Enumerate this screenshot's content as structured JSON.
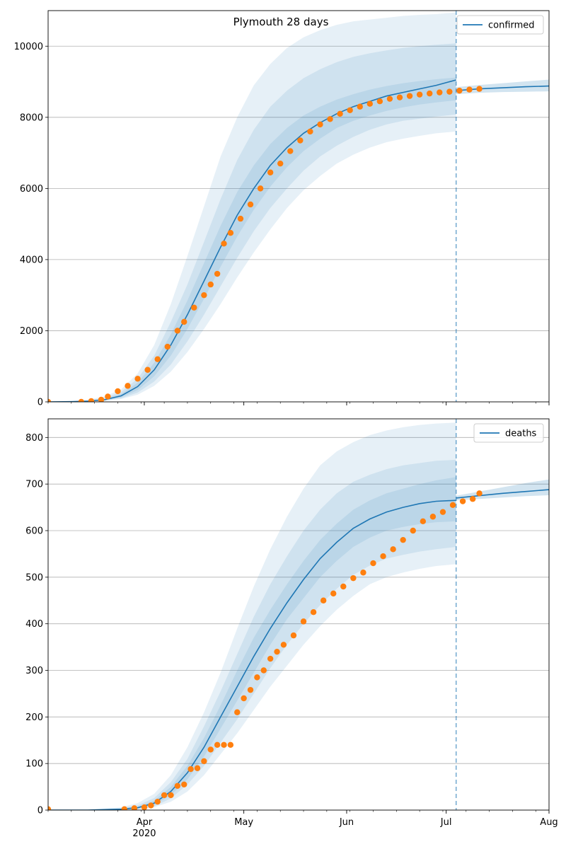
{
  "figure": {
    "title": "Plymouth 28 days",
    "x_ticks": [
      {
        "date": "2020-04-01",
        "label": "Apr",
        "sublabel": "2020"
      },
      {
        "date": "2020-05-01",
        "label": "May",
        "sublabel": ""
      },
      {
        "date": "2020-06-01",
        "label": "Jun",
        "sublabel": ""
      },
      {
        "date": "2020-07-01",
        "label": "Jul",
        "sublabel": ""
      },
      {
        "date": "2020-08-01",
        "label": "Aug",
        "sublabel": ""
      }
    ],
    "xlim": [
      "2020-03-03",
      "2020-08-01"
    ],
    "forecast_start": "2020-07-04",
    "colors": {
      "model": "#1f77b4",
      "observed": "#ff7f0e",
      "band": "#1f77b4",
      "grid": "#b0b0b0"
    }
  },
  "chart_data": [
    {
      "type": "line",
      "legend": "confirmed",
      "legend_position": "top-right",
      "ylim": [
        0,
        11000
      ],
      "y_ticks": [
        0,
        2000,
        4000,
        6000,
        8000,
        10000
      ],
      "grid": "horizontal",
      "model_fit": {
        "x": [
          "2020-03-03",
          "2020-03-10",
          "2020-03-15",
          "2020-03-20",
          "2020-03-25",
          "2020-03-30",
          "2020-04-04",
          "2020-04-09",
          "2020-04-14",
          "2020-04-19",
          "2020-04-24",
          "2020-04-29",
          "2020-05-04",
          "2020-05-09",
          "2020-05-14",
          "2020-05-19",
          "2020-05-24",
          "2020-05-29",
          "2020-06-03",
          "2020-06-08",
          "2020-06-13",
          "2020-06-18",
          "2020-06-23",
          "2020-06-28",
          "2020-07-04"
        ],
        "y": [
          0,
          5,
          20,
          60,
          170,
          430,
          900,
          1600,
          2450,
          3400,
          4350,
          5250,
          6000,
          6650,
          7150,
          7550,
          7850,
          8100,
          8300,
          8450,
          8600,
          8700,
          8800,
          8900,
          9050
        ],
        "band_90": {
          "lower": [
            0,
            0,
            5,
            25,
            80,
            200,
            450,
            850,
            1400,
            2050,
            2750,
            3500,
            4200,
            4850,
            5450,
            5950,
            6350,
            6700,
            6950,
            7150,
            7300,
            7400,
            7480,
            7550,
            7600
          ],
          "upper": [
            0,
            20,
            60,
            150,
            350,
            800,
            1600,
            2750,
            4100,
            5500,
            6900,
            8000,
            8900,
            9500,
            9950,
            10250,
            10450,
            10600,
            10700,
            10750,
            10800,
            10850,
            10880,
            10900,
            10950
          ]
        },
        "band_80": {
          "lower": [
            0,
            0,
            8,
            35,
            100,
            260,
            570,
            1050,
            1700,
            2450,
            3250,
            4050,
            4800,
            5450,
            6000,
            6500,
            6900,
            7200,
            7450,
            7650,
            7800,
            7900,
            7960,
            8020,
            8080
          ],
          "upper": [
            0,
            12,
            45,
            110,
            280,
            650,
            1300,
            2250,
            3300,
            4500,
            5700,
            6800,
            7650,
            8300,
            8750,
            9100,
            9350,
            9550,
            9700,
            9800,
            9880,
            9950,
            10000,
            10040,
            10080
          ]
        },
        "band_50": {
          "lower": [
            0,
            2,
            12,
            45,
            130,
            330,
            720,
            1300,
            2050,
            2900,
            3800,
            4650,
            5400,
            6050,
            6600,
            7050,
            7400,
            7700,
            7900,
            8050,
            8180,
            8280,
            8360,
            8420,
            8480
          ],
          "upper": [
            0,
            8,
            30,
            80,
            220,
            540,
            1100,
            1900,
            2850,
            3900,
            4950,
            5900,
            6650,
            7250,
            7700,
            8050,
            8300,
            8500,
            8650,
            8780,
            8880,
            8960,
            9020,
            9070,
            9120
          ]
        }
      },
      "forecast": {
        "x": [
          "2020-07-04",
          "2020-07-11",
          "2020-07-18",
          "2020-07-25",
          "2020-08-01"
        ],
        "y": [
          8750,
          8800,
          8830,
          8860,
          8880
        ],
        "band_lower": [
          8650,
          8690,
          8710,
          8720,
          8730
        ],
        "band_upper": [
          8850,
          8910,
          8960,
          9010,
          9060
        ]
      },
      "observed": {
        "x": [
          "2020-03-03",
          "2020-03-13",
          "2020-03-16",
          "2020-03-19",
          "2020-03-21",
          "2020-03-24",
          "2020-03-27",
          "2020-03-30",
          "2020-04-02",
          "2020-04-05",
          "2020-04-08",
          "2020-04-11",
          "2020-04-13",
          "2020-04-16",
          "2020-04-19",
          "2020-04-21",
          "2020-04-23",
          "2020-04-25",
          "2020-04-27",
          "2020-04-30",
          "2020-05-03",
          "2020-05-06",
          "2020-05-09",
          "2020-05-12",
          "2020-05-15",
          "2020-05-18",
          "2020-05-21",
          "2020-05-24",
          "2020-05-27",
          "2020-05-30",
          "2020-06-02",
          "2020-06-05",
          "2020-06-08",
          "2020-06-11",
          "2020-06-14",
          "2020-06-17",
          "2020-06-20",
          "2020-06-23",
          "2020-06-26",
          "2020-06-29",
          "2020-07-02",
          "2020-07-05",
          "2020-07-08",
          "2020-07-11"
        ],
        "y": [
          0,
          0,
          20,
          60,
          150,
          300,
          450,
          650,
          900,
          1200,
          1550,
          2000,
          2250,
          2650,
          3000,
          3300,
          3600,
          4450,
          4750,
          5150,
          5550,
          6000,
          6450,
          6700,
          7050,
          7350,
          7600,
          7800,
          7950,
          8100,
          8200,
          8300,
          8380,
          8450,
          8520,
          8560,
          8600,
          8640,
          8670,
          8700,
          8720,
          8750,
          8780,
          8800
        ]
      }
    },
    {
      "type": "line",
      "legend": "deaths",
      "legend_position": "top-right",
      "ylim": [
        0,
        840
      ],
      "y_ticks": [
        0,
        100,
        200,
        300,
        400,
        500,
        600,
        700,
        800
      ],
      "grid": "horizontal",
      "model_fit": {
        "x": [
          "2020-03-03",
          "2020-03-15",
          "2020-03-25",
          "2020-03-30",
          "2020-04-04",
          "2020-04-09",
          "2020-04-14",
          "2020-04-19",
          "2020-04-24",
          "2020-04-29",
          "2020-05-04",
          "2020-05-09",
          "2020-05-14",
          "2020-05-19",
          "2020-05-24",
          "2020-05-29",
          "2020-06-03",
          "2020-06-08",
          "2020-06-13",
          "2020-06-18",
          "2020-06-23",
          "2020-06-28",
          "2020-07-04"
        ],
        "y": [
          0,
          0,
          2,
          5,
          15,
          40,
          80,
          135,
          200,
          265,
          330,
          390,
          445,
          495,
          540,
          575,
          605,
          625,
          640,
          650,
          658,
          663,
          665
        ],
        "band_90": {
          "lower": [
            0,
            0,
            0,
            1,
            6,
            18,
            40,
            75,
            120,
            165,
            215,
            265,
            310,
            355,
            395,
            430,
            460,
            485,
            500,
            510,
            518,
            524,
            528
          ],
          "upper": [
            0,
            1,
            6,
            15,
            35,
            75,
            135,
            210,
            295,
            390,
            480,
            560,
            630,
            690,
            740,
            770,
            790,
            805,
            815,
            822,
            827,
            830,
            832
          ]
        },
        "band_80": {
          "lower": [
            0,
            0,
            0,
            2,
            8,
            25,
            55,
            95,
            145,
            195,
            250,
            305,
            355,
            400,
            440,
            475,
            505,
            525,
            540,
            548,
            555,
            560,
            565
          ],
          "upper": [
            0,
            1,
            4,
            10,
            26,
            60,
            110,
            180,
            255,
            335,
            415,
            485,
            545,
            600,
            645,
            680,
            705,
            720,
            732,
            740,
            745,
            750,
            752
          ]
        },
        "band_50": {
          "lower": [
            0,
            0,
            1,
            3,
            11,
            32,
            66,
            115,
            175,
            235,
            295,
            355,
            410,
            455,
            500,
            535,
            565,
            585,
            600,
            608,
            614,
            618,
            620
          ],
          "upper": [
            0,
            0,
            3,
            7,
            20,
            50,
            95,
            155,
            225,
            300,
            370,
            430,
            485,
            535,
            580,
            615,
            645,
            665,
            680,
            690,
            700,
            708,
            715
          ]
        }
      },
      "forecast": {
        "x": [
          "2020-07-04",
          "2020-07-11",
          "2020-07-18",
          "2020-07-25",
          "2020-08-01"
        ],
        "y": [
          670,
          675,
          680,
          684,
          688
        ],
        "band_lower": [
          665,
          668,
          671,
          674,
          676
        ],
        "band_upper": [
          675,
          684,
          693,
          702,
          710
        ]
      },
      "observed": {
        "x": [
          "2020-03-03",
          "2020-03-26",
          "2020-03-29",
          "2020-04-01",
          "2020-04-03",
          "2020-04-05",
          "2020-04-07",
          "2020-04-09",
          "2020-04-11",
          "2020-04-13",
          "2020-04-15",
          "2020-04-17",
          "2020-04-19",
          "2020-04-21",
          "2020-04-23",
          "2020-04-25",
          "2020-04-27",
          "2020-04-29",
          "2020-05-01",
          "2020-05-03",
          "2020-05-05",
          "2020-05-07",
          "2020-05-09",
          "2020-05-11",
          "2020-05-13",
          "2020-05-16",
          "2020-05-19",
          "2020-05-22",
          "2020-05-25",
          "2020-05-28",
          "2020-05-31",
          "2020-06-03",
          "2020-06-06",
          "2020-06-09",
          "2020-06-12",
          "2020-06-15",
          "2020-06-18",
          "2020-06-21",
          "2020-06-24",
          "2020-06-27",
          "2020-06-30",
          "2020-07-03",
          "2020-07-06",
          "2020-07-09",
          "2020-07-11"
        ],
        "y": [
          2,
          2,
          4,
          6,
          10,
          18,
          32,
          32,
          52,
          55,
          88,
          90,
          105,
          130,
          140,
          140,
          140,
          210,
          240,
          258,
          285,
          300,
          325,
          340,
          355,
          375,
          405,
          425,
          450,
          465,
          480,
          498,
          510,
          530,
          545,
          560,
          580,
          600,
          620,
          630,
          640,
          655,
          663,
          668,
          680
        ]
      }
    }
  ]
}
